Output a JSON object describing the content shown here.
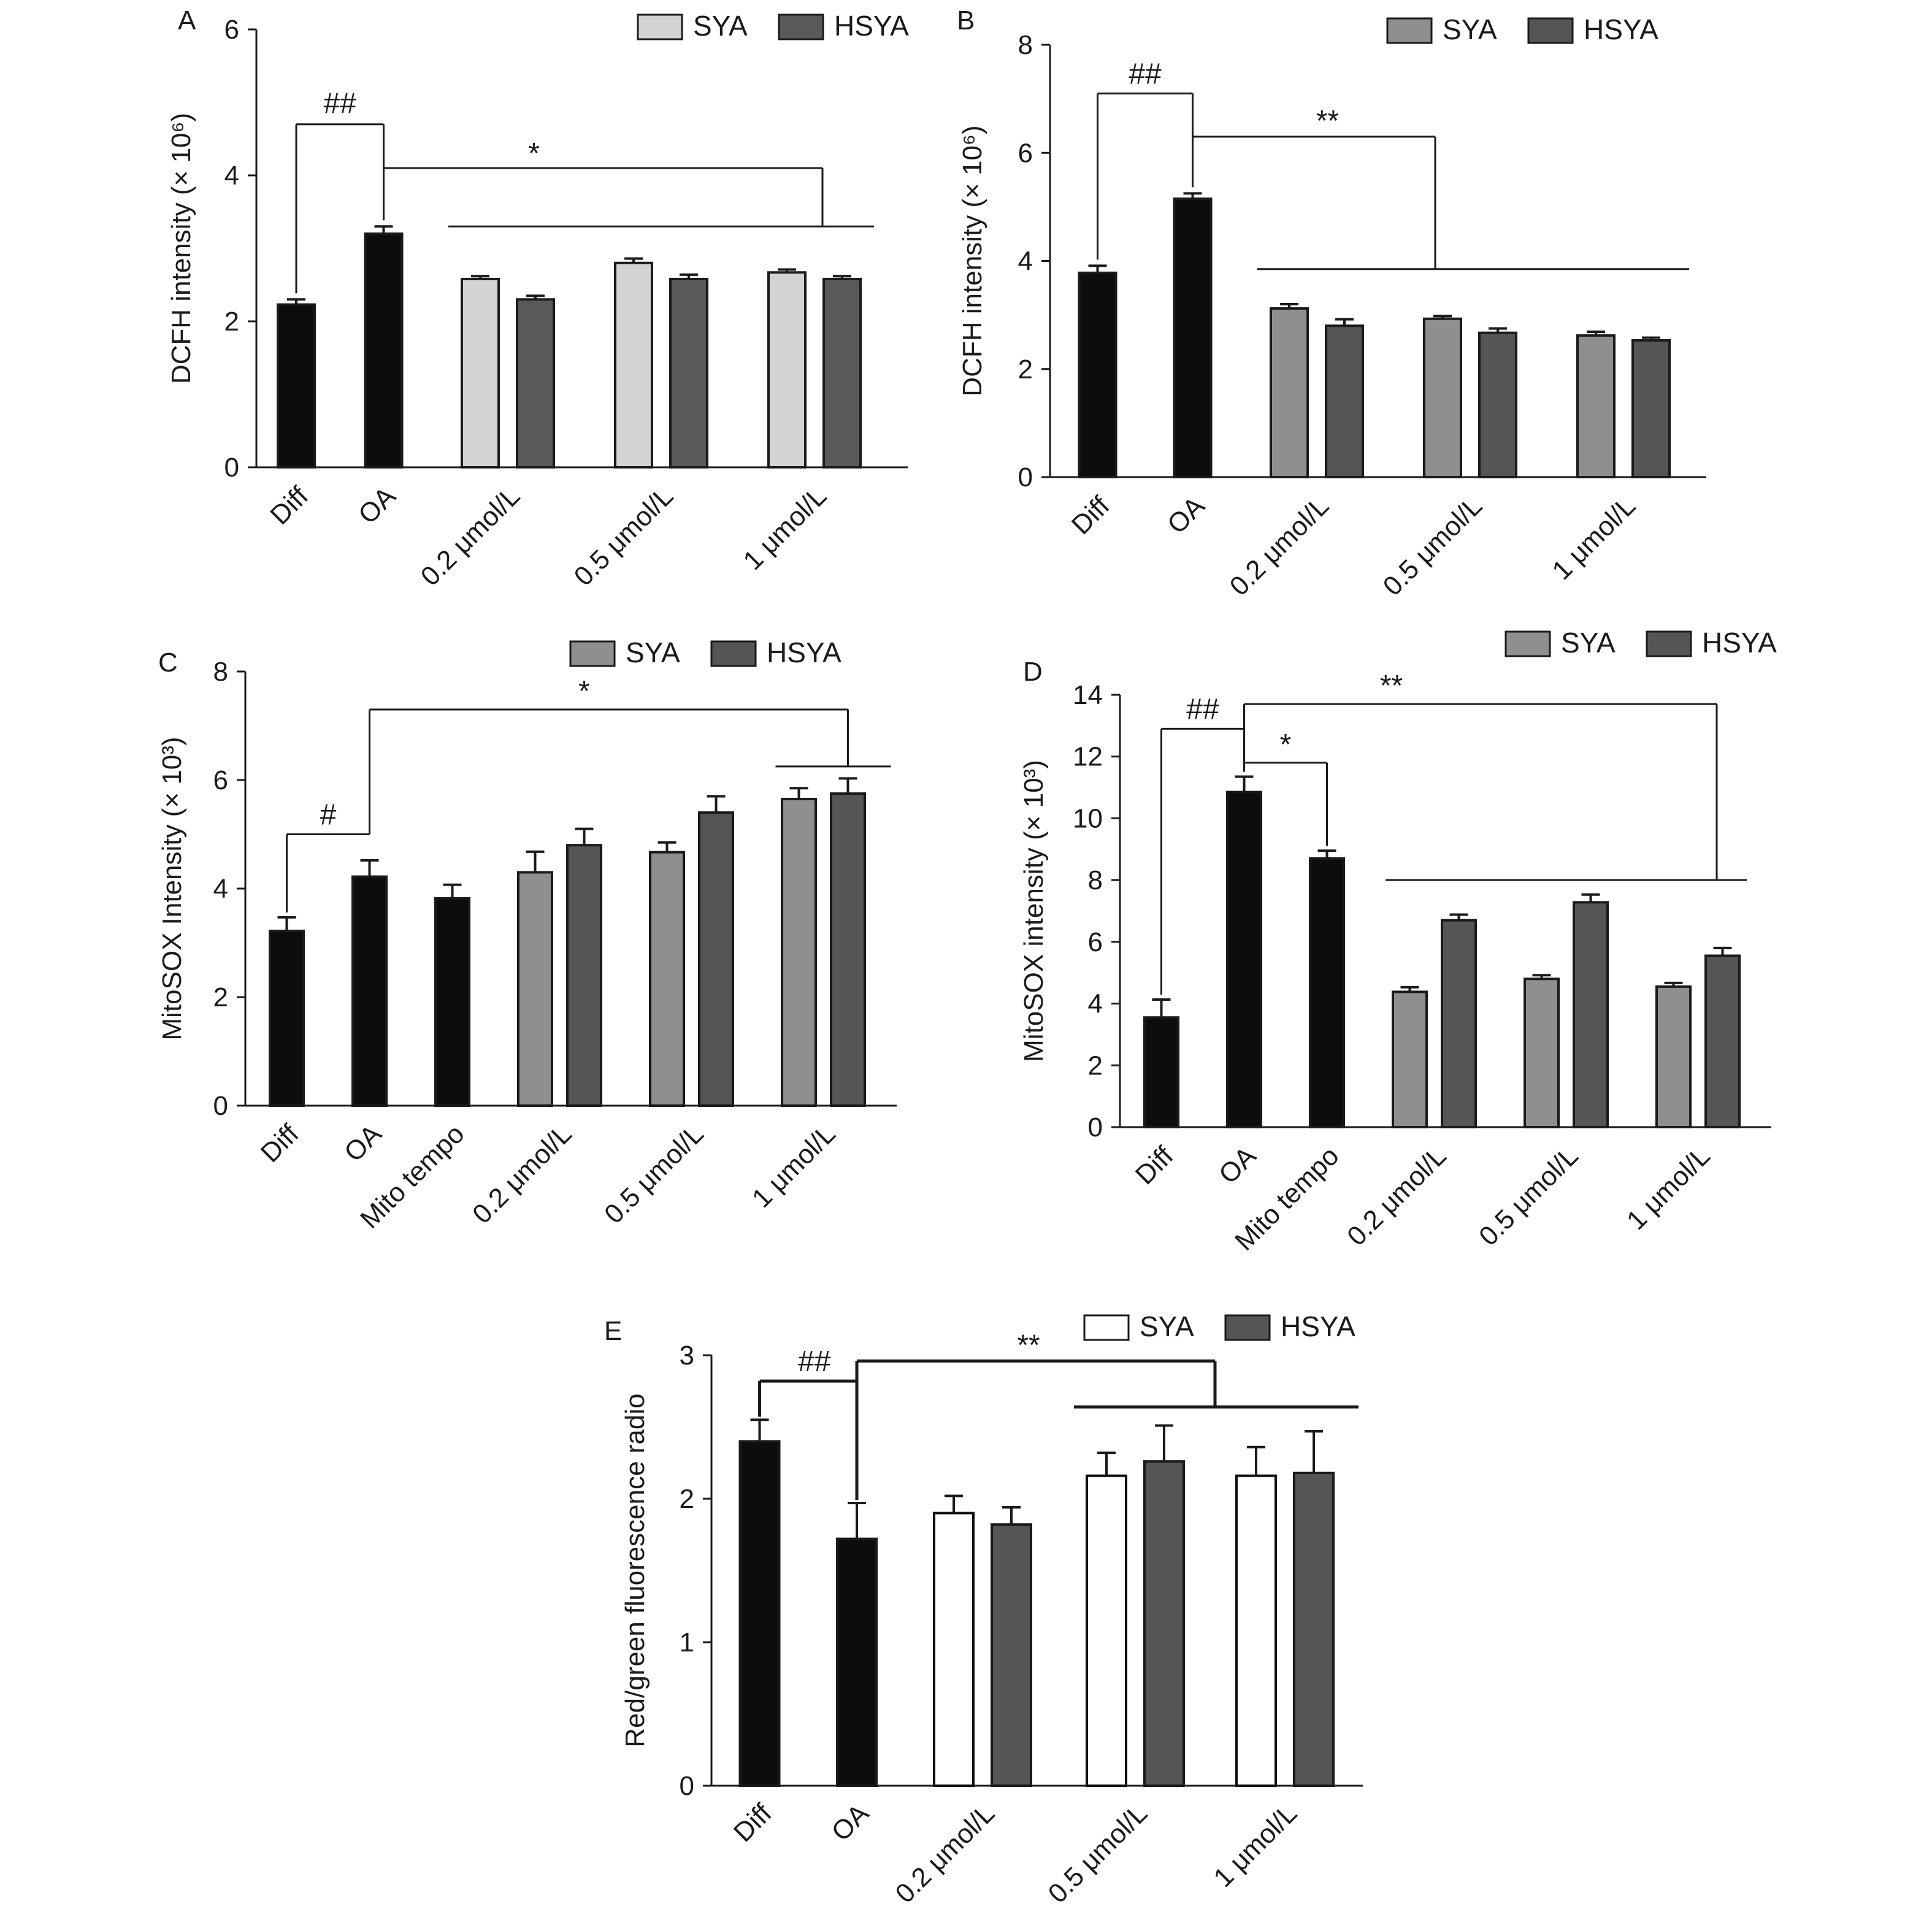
{
  "chart_data": [
    {
      "panel": "A",
      "type": "bar",
      "ylabel": "DCFH intensity (× 10⁶)",
      "ylim": [
        0,
        6
      ],
      "yticks": [
        0,
        2,
        4,
        6
      ],
      "legend": [
        {
          "name": "SYA",
          "color": "#d3d3d3"
        },
        {
          "name": "HSYA",
          "color": "#595959"
        }
      ],
      "groups": [
        {
          "label": "Diff",
          "bars": [
            {
              "value": 2.23,
              "err": 0.07,
              "color": "#0d0d0d"
            }
          ]
        },
        {
          "label": "OA",
          "bars": [
            {
              "value": 3.2,
              "err": 0.1,
              "color": "#0d0d0d"
            }
          ]
        },
        {
          "label": "0.2 μmol/L",
          "bars": [
            {
              "value": 2.58,
              "err": 0.04,
              "color": "#d3d3d3"
            },
            {
              "value": 2.3,
              "err": 0.05,
              "color": "#595959"
            }
          ]
        },
        {
          "label": "0.5 μmol/L",
          "bars": [
            {
              "value": 2.8,
              "err": 0.06,
              "color": "#d3d3d3"
            },
            {
              "value": 2.58,
              "err": 0.06,
              "color": "#595959"
            }
          ]
        },
        {
          "label": "1 μmol/L",
          "bars": [
            {
              "value": 2.67,
              "err": 0.04,
              "color": "#d3d3d3"
            },
            {
              "value": 2.58,
              "err": 0.04,
              "color": "#595959"
            }
          ]
        }
      ],
      "annotations": [
        {
          "text": "##",
          "from": "Diff",
          "to": "OA"
        },
        {
          "text": "*",
          "from": "OA",
          "to": "0.2 μmol/L – 1 μmol/L"
        }
      ]
    },
    {
      "panel": "B",
      "type": "bar",
      "ylabel": "DCFH intensity (× 10⁶)",
      "ylim": [
        0,
        8
      ],
      "yticks": [
        0,
        2,
        4,
        6,
        8
      ],
      "legend": [
        {
          "name": "SYA",
          "color": "#8f8f8f"
        },
        {
          "name": "HSYA",
          "color": "#555555"
        }
      ],
      "groups": [
        {
          "label": "Diff",
          "bars": [
            {
              "value": 3.78,
              "err": 0.13,
              "color": "#0d0d0d"
            }
          ]
        },
        {
          "label": "OA",
          "bars": [
            {
              "value": 5.15,
              "err": 0.1,
              "color": "#0d0d0d"
            }
          ]
        },
        {
          "label": "0.2 μmol/L",
          "bars": [
            {
              "value": 3.12,
              "err": 0.08,
              "color": "#8f8f8f"
            },
            {
              "value": 2.8,
              "err": 0.12,
              "color": "#555555"
            }
          ]
        },
        {
          "label": "0.5 μmol/L",
          "bars": [
            {
              "value": 2.93,
              "err": 0.05,
              "color": "#8f8f8f"
            },
            {
              "value": 2.67,
              "err": 0.08,
              "color": "#555555"
            }
          ]
        },
        {
          "label": "1 μmol/L",
          "bars": [
            {
              "value": 2.62,
              "err": 0.07,
              "color": "#8f8f8f"
            },
            {
              "value": 2.53,
              "err": 0.05,
              "color": "#555555"
            }
          ]
        }
      ],
      "annotations": [
        {
          "text": "##",
          "from": "Diff",
          "to": "OA"
        },
        {
          "text": "**",
          "from": "OA",
          "to": "0.2 μmol/L – 1 μmol/L"
        }
      ]
    },
    {
      "panel": "C",
      "type": "bar",
      "ylabel": "MitoSOX Intensity (× 10³)",
      "ylim": [
        0,
        8
      ],
      "yticks": [
        0,
        2,
        4,
        6,
        8
      ],
      "legend": [
        {
          "name": "SYA",
          "color": "#8f8f8f"
        },
        {
          "name": "HSYA",
          "color": "#555555"
        }
      ],
      "groups": [
        {
          "label": "Diff",
          "bars": [
            {
              "value": 3.22,
              "err": 0.25,
              "color": "#0d0d0d"
            }
          ]
        },
        {
          "label": "OA",
          "bars": [
            {
              "value": 4.22,
              "err": 0.3,
              "color": "#0d0d0d"
            }
          ]
        },
        {
          "label": "Mito tempo",
          "bars": [
            {
              "value": 3.82,
              "err": 0.25,
              "color": "#0d0d0d"
            }
          ]
        },
        {
          "label": "0.2 μmol/L",
          "bars": [
            {
              "value": 4.3,
              "err": 0.38,
              "color": "#8f8f8f"
            },
            {
              "value": 4.8,
              "err": 0.3,
              "color": "#555555"
            }
          ]
        },
        {
          "label": "0.5 μmol/L",
          "bars": [
            {
              "value": 4.67,
              "err": 0.18,
              "color": "#8f8f8f"
            },
            {
              "value": 5.4,
              "err": 0.3,
              "color": "#555555"
            }
          ]
        },
        {
          "label": "1 μmol/L",
          "bars": [
            {
              "value": 5.65,
              "err": 0.2,
              "color": "#8f8f8f"
            },
            {
              "value": 5.75,
              "err": 0.28,
              "color": "#555555"
            }
          ]
        }
      ],
      "annotations": [
        {
          "text": "#",
          "from": "Diff",
          "to": "OA"
        },
        {
          "text": "*",
          "from": "OA",
          "to": "1 μmol/L"
        }
      ]
    },
    {
      "panel": "D",
      "type": "bar",
      "ylabel": "MitoSOX intensity (× 10³)",
      "ylim": [
        0,
        14
      ],
      "yticks": [
        0,
        2,
        4,
        6,
        8,
        10,
        12,
        14
      ],
      "legend": [
        {
          "name": "SYA",
          "color": "#8f8f8f"
        },
        {
          "name": "HSYA",
          "color": "#555555"
        }
      ],
      "groups": [
        {
          "label": "Diff",
          "bars": [
            {
              "value": 3.55,
              "err": 0.58,
              "color": "#0d0d0d"
            }
          ]
        },
        {
          "label": "OA",
          "bars": [
            {
              "value": 10.85,
              "err": 0.5,
              "color": "#0d0d0d"
            }
          ]
        },
        {
          "label": "Mito tempo",
          "bars": [
            {
              "value": 8.7,
              "err": 0.25,
              "color": "#0d0d0d"
            }
          ]
        },
        {
          "label": "0.2 μmol/L",
          "bars": [
            {
              "value": 4.38,
              "err": 0.15,
              "color": "#8f8f8f"
            },
            {
              "value": 6.7,
              "err": 0.18,
              "color": "#555555"
            }
          ]
        },
        {
          "label": "0.5 μmol/L",
          "bars": [
            {
              "value": 4.8,
              "err": 0.12,
              "color": "#8f8f8f"
            },
            {
              "value": 7.28,
              "err": 0.25,
              "color": "#555555"
            }
          ]
        },
        {
          "label": "1 μmol/L",
          "bars": [
            {
              "value": 4.55,
              "err": 0.12,
              "color": "#8f8f8f"
            },
            {
              "value": 5.55,
              "err": 0.25,
              "color": "#555555"
            }
          ]
        }
      ],
      "annotations": [
        {
          "text": "##",
          "from": "Diff",
          "to": "OA"
        },
        {
          "text": "*",
          "from": "OA",
          "to": "Mito tempo"
        },
        {
          "text": "**",
          "from": "OA",
          "to": "0.2 μmol/L – 1 μmol/L"
        }
      ]
    },
    {
      "panel": "E",
      "type": "bar",
      "ylabel": "Red/green fluorescence radio",
      "ylim": [
        0,
        3
      ],
      "yticks": [
        0,
        1,
        2,
        3
      ],
      "legend": [
        {
          "name": "SYA",
          "color": "#ffffff"
        },
        {
          "name": "HSYA",
          "color": "#555555"
        }
      ],
      "groups": [
        {
          "label": "Diff",
          "bars": [
            {
              "value": 2.4,
              "err": 0.15,
              "color": "#0d0d0d"
            }
          ]
        },
        {
          "label": "OA",
          "bars": [
            {
              "value": 1.72,
              "err": 0.25,
              "color": "#0d0d0d"
            }
          ]
        },
        {
          "label": "0.2 μmol/L",
          "bars": [
            {
              "value": 1.9,
              "err": 0.12,
              "color": "#ffffff"
            },
            {
              "value": 1.82,
              "err": 0.12,
              "color": "#555555"
            }
          ]
        },
        {
          "label": "0.5 μmol/L",
          "bars": [
            {
              "value": 2.16,
              "err": 0.16,
              "color": "#ffffff"
            },
            {
              "value": 2.26,
              "err": 0.25,
              "color": "#555555"
            }
          ]
        },
        {
          "label": "1 μmol/L",
          "bars": [
            {
              "value": 2.16,
              "err": 0.2,
              "color": "#ffffff"
            },
            {
              "value": 2.18,
              "err": 0.29,
              "color": "#555555"
            }
          ]
        }
      ],
      "annotations": [
        {
          "text": "##",
          "from": "Diff",
          "to": "OA"
        },
        {
          "text": "**",
          "from": "OA",
          "to": "0.5 μmol/L – 1 μmol/L"
        }
      ]
    }
  ]
}
